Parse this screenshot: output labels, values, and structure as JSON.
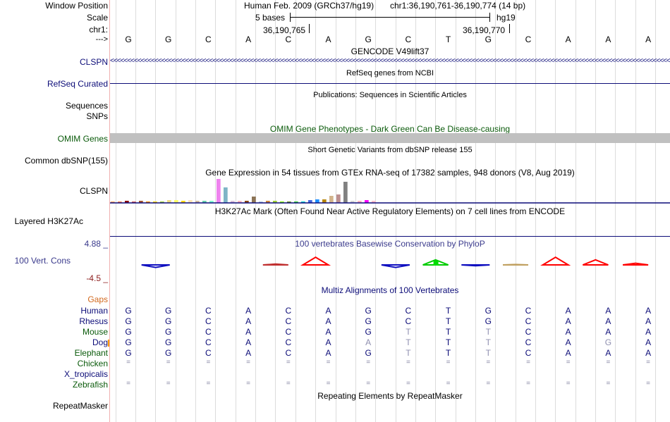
{
  "side_labels": {
    "window_position": "Window Position",
    "scale": "Scale",
    "chr": "chr1:",
    "arrow": "--->",
    "clspn_gene": "CLSPN",
    "refseq": "RefSeq Curated",
    "sequences": "Sequences",
    "snps": "SNPs",
    "omim": "OMIM Genes",
    "common_dbsnp": "Common dbSNP(155)",
    "clspn_gtex": "CLSPN",
    "h3k27ac": "Layered H3K27Ac",
    "cons_max": "4.88 _",
    "cons_label": "100 Vert. Cons",
    "cons_min": "-4.5 _",
    "gaps": "Gaps",
    "repeatmasker": "RepeatMasker"
  },
  "header": {
    "assembly": "Human Feb. 2009 (GRCh37/hg19)",
    "position": "chr1:36,190,761-36,190,774 (14 bp)",
    "scale_text": "5 bases",
    "scale_db": "hg19",
    "coord_left": "36,190,765",
    "coord_right": "36,190,770"
  },
  "sequence": [
    "G",
    "G",
    "C",
    "A",
    "C",
    "A",
    "G",
    "C",
    "T",
    "G",
    "C",
    "A",
    "A",
    "A"
  ],
  "track_titles": {
    "gencode": "GENCODE V49lift37",
    "refseq": "RefSeq genes from NCBI",
    "publications": "Publications: Sequences in Scientific Articles",
    "omim": "OMIM Gene Phenotypes - Dark Green Can Be Disease-causing",
    "dbsnp": "Short Genetic Variants from dbSNP release 155",
    "gtex": "Gene Expression in 54 tissues from GTEx RNA-seq of 17382 samples, 948 donors (V8, Aug 2019)",
    "h3k27ac": "H3K27Ac Mark (Often Found Near Active Regulatory Elements) on 7 cell lines from ENCODE",
    "phylop": "100 vertebrates Basewise Conservation by PhyloP",
    "multiz": "Multiz Alignments of 100 Vertebrates",
    "repeatmasker": "Repeating Elements by RepeatMasker"
  },
  "alignment": [
    {
      "species": "Human",
      "bases": "GGCACAGCTGCAAA"
    },
    {
      "species": "Rhesus",
      "bases": "GGCACAGCTGCAAA"
    },
    {
      "species": "Mouse",
      "bases": "GGCACAGTTTCAAA"
    },
    {
      "species": "Dog",
      "bases": "GGCACAATTTCAGA"
    },
    {
      "species": "Elephant",
      "bases": "GGCACAGTTTCAAA"
    },
    {
      "species": "Chicken",
      "bases": "=============="
    },
    {
      "species": "X_tropicalis",
      "bases": ""
    },
    {
      "species": "Zebrafish",
      "bases": "=============="
    }
  ],
  "gtex_bars": [
    {
      "color": "#f4a460",
      "h": 2
    },
    {
      "color": "#ff7f50",
      "h": 2
    },
    {
      "color": "#8b0000",
      "h": 3
    },
    {
      "color": "#cd5c5c",
      "h": 2
    },
    {
      "color": "#a0522d",
      "h": 3
    },
    {
      "color": "#ff8c00",
      "h": 2
    },
    {
      "color": "#ffd700",
      "h": 2
    },
    {
      "color": "#9acd32",
      "h": 2
    },
    {
      "color": "#eedd82",
      "h": 4
    },
    {
      "color": "#ffff66",
      "h": 4
    },
    {
      "color": "#ffd700",
      "h": 3
    },
    {
      "color": "#ffe4b5",
      "h": 4
    },
    {
      "color": "#cdb79e",
      "h": 3
    },
    {
      "color": "#66cdaa",
      "h": 3
    },
    {
      "color": "#7fffd4",
      "h": 3
    },
    {
      "color": "#ee82ee",
      "h": 34
    },
    {
      "color": "#7eb5c6",
      "h": 22
    },
    {
      "color": "#d8bfd8",
      "h": 3
    },
    {
      "color": "#ffb6c1",
      "h": 3
    },
    {
      "color": "#8b4513",
      "h": 3
    },
    {
      "color": "#8b7355",
      "h": 9
    },
    {
      "color": "#b0c4de",
      "h": 2
    },
    {
      "color": "#cd853f",
      "h": 3
    },
    {
      "color": "#9acd32",
      "h": 3
    },
    {
      "color": "#7fff00",
      "h": 2
    },
    {
      "color": "#6b8e23",
      "h": 2
    },
    {
      "color": "#32cd32",
      "h": 2
    },
    {
      "color": "#00ced1",
      "h": 2
    },
    {
      "color": "#4169e1",
      "h": 4
    },
    {
      "color": "#1e90ff",
      "h": 5
    },
    {
      "color": "#b8860b",
      "h": 5
    },
    {
      "color": "#d2b48c",
      "h": 10
    },
    {
      "color": "#bc8f8f",
      "h": 12
    },
    {
      "color": "#808080",
      "h": 30
    },
    {
      "color": "#d3d3d3",
      "h": 3
    },
    {
      "color": "#ffb6c1",
      "h": 3
    },
    {
      "color": "#ff00ff",
      "h": 4
    },
    {
      "color": "#ffc0cb",
      "h": 3
    }
  ],
  "phylop": [
    {
      "color": "#1010c0",
      "v": -0.3
    },
    {
      "color": "#c03030",
      "v": 0.1
    },
    {
      "color": "#ff0000",
      "v": 0.9
    },
    {
      "color": "#1010c0",
      "v": -0.3
    },
    {
      "color": "#00cc00",
      "v": 0.6
    },
    {
      "color": "#1010c0",
      "v": -0.1
    },
    {
      "color": "#c0a060",
      "v": 0.05
    },
    {
      "color": "#ff0000",
      "v": 0.9
    },
    {
      "color": "#ff0000",
      "v": 0.6
    },
    {
      "color": "#ff0000",
      "v": 0.2
    }
  ]
}
